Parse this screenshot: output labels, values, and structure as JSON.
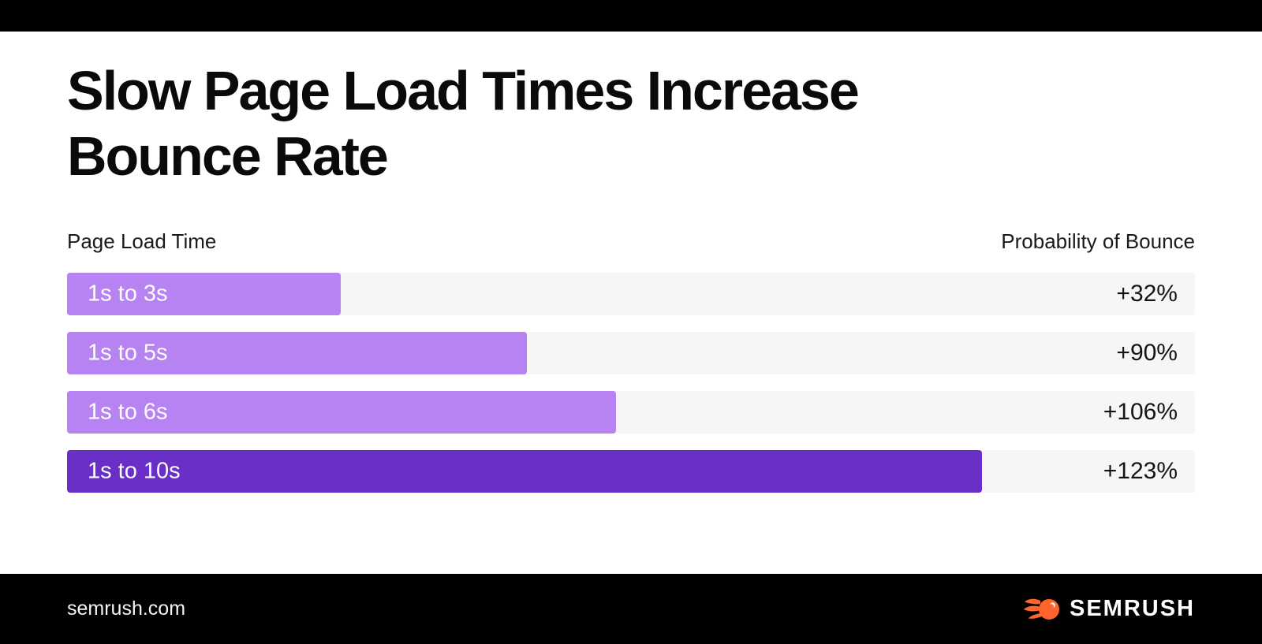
{
  "page": {
    "title_lines": [
      "Slow Page Load Times Increase",
      "Bounce Rate"
    ]
  },
  "chart_data": {
    "type": "bar",
    "orientation": "horizontal",
    "title": "Slow Page Load Times Increase Bounce Rate",
    "col_header_left": "Page Load Time",
    "col_header_right": "Probability of Bounce",
    "categories": [
      "1s to 3s",
      "1s to 5s",
      "1s to 6s",
      "1s to 10s"
    ],
    "values": [
      32,
      90,
      106,
      123
    ],
    "rows": [
      {
        "label": "1s to 3s",
        "value": 32,
        "value_label": "+32%",
        "width_pct": 24.3,
        "color": "#b782f2"
      },
      {
        "label": "1s to 5s",
        "value": 90,
        "value_label": "+90%",
        "width_pct": 40.8,
        "color": "#b782f2"
      },
      {
        "label": "1s to 6s",
        "value": 106,
        "value_label": "+106%",
        "width_pct": 48.7,
        "color": "#b782f2"
      },
      {
        "label": "1s to 10s",
        "value": 123,
        "value_label": "+123%",
        "width_pct": 81.1,
        "color": "#6a2fc6"
      }
    ],
    "track_color": "#f6f6f7",
    "base_color": "#b782f2",
    "highlight_color": "#6a2fc6",
    "legend_position": "none",
    "grid": false
  },
  "footer": {
    "site_label": "semrush.com",
    "brand_wordmark": "SEMRUSH",
    "logo_color": "#ff642d"
  }
}
